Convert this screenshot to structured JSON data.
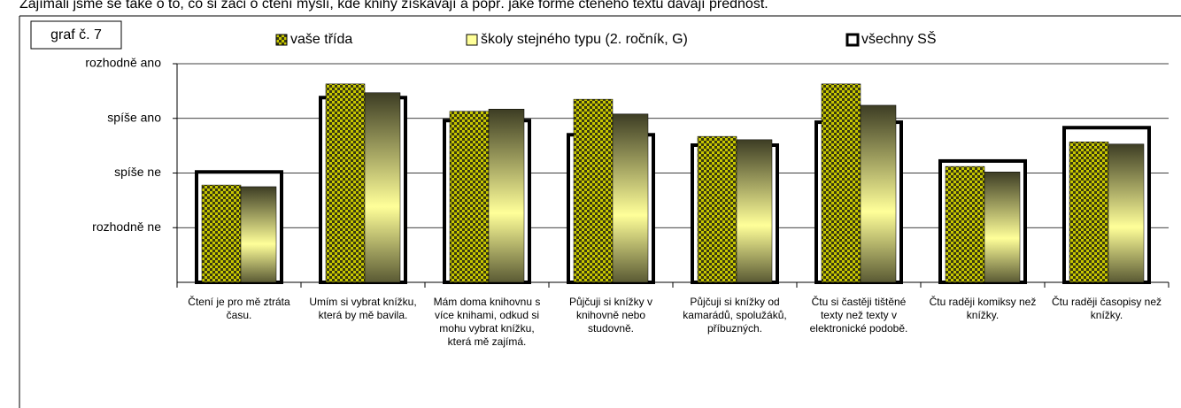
{
  "header": "Zajímali jsme se také o to, co si žáci o čtení myslí, kde knihy získávají a popř. jaké formě čteného textu dávají přednost.",
  "chart_data": {
    "type": "bar",
    "title": "graf č. 7",
    "categories": [
      "Čtení je pro mě ztráta času.",
      "Umím si vybrat knížku, která by mě bavila.",
      "Mám doma knihovnu s více knihami, odkud si mohu vybrat knížku, která mě zajímá.",
      "Půjčuji si knížky v knihovně nebo studovně.",
      "Půjčuji si knížky od kamarádů, spolužáků, příbuzných.",
      "Čtu si častěji tištěné texty než texty v elektronické podobě.",
      "Čtu raději komiksy než knížky.",
      "Čtu raději časopisy než knížky."
    ],
    "series": [
      {
        "name": "vaše třída",
        "color": "#c8c800",
        "values": [
          1.78,
          3.63,
          3.13,
          3.35,
          2.67,
          3.63,
          2.12,
          2.57
        ]
      },
      {
        "name": "školy stejného typu (2. ročník, G)",
        "color": "#ffff99",
        "values": [
          1.75,
          3.47,
          3.17,
          3.08,
          2.61,
          3.24,
          2.02,
          2.53
        ]
      },
      {
        "name": "všechny SŠ",
        "color": "#000000",
        "values": [
          2.02,
          3.38,
          2.96,
          2.7,
          2.51,
          2.93,
          2.22,
          2.83
        ]
      }
    ],
    "ylim": [
      0,
      4
    ],
    "yticks": [
      {
        "value": 4,
        "label": "rozhodně ano"
      },
      {
        "value": 3,
        "label": "spíše ano"
      },
      {
        "value": 2,
        "label": "spíše ne"
      },
      {
        "value": 1,
        "label": "rozhodně ne"
      }
    ],
    "grid": true
  }
}
